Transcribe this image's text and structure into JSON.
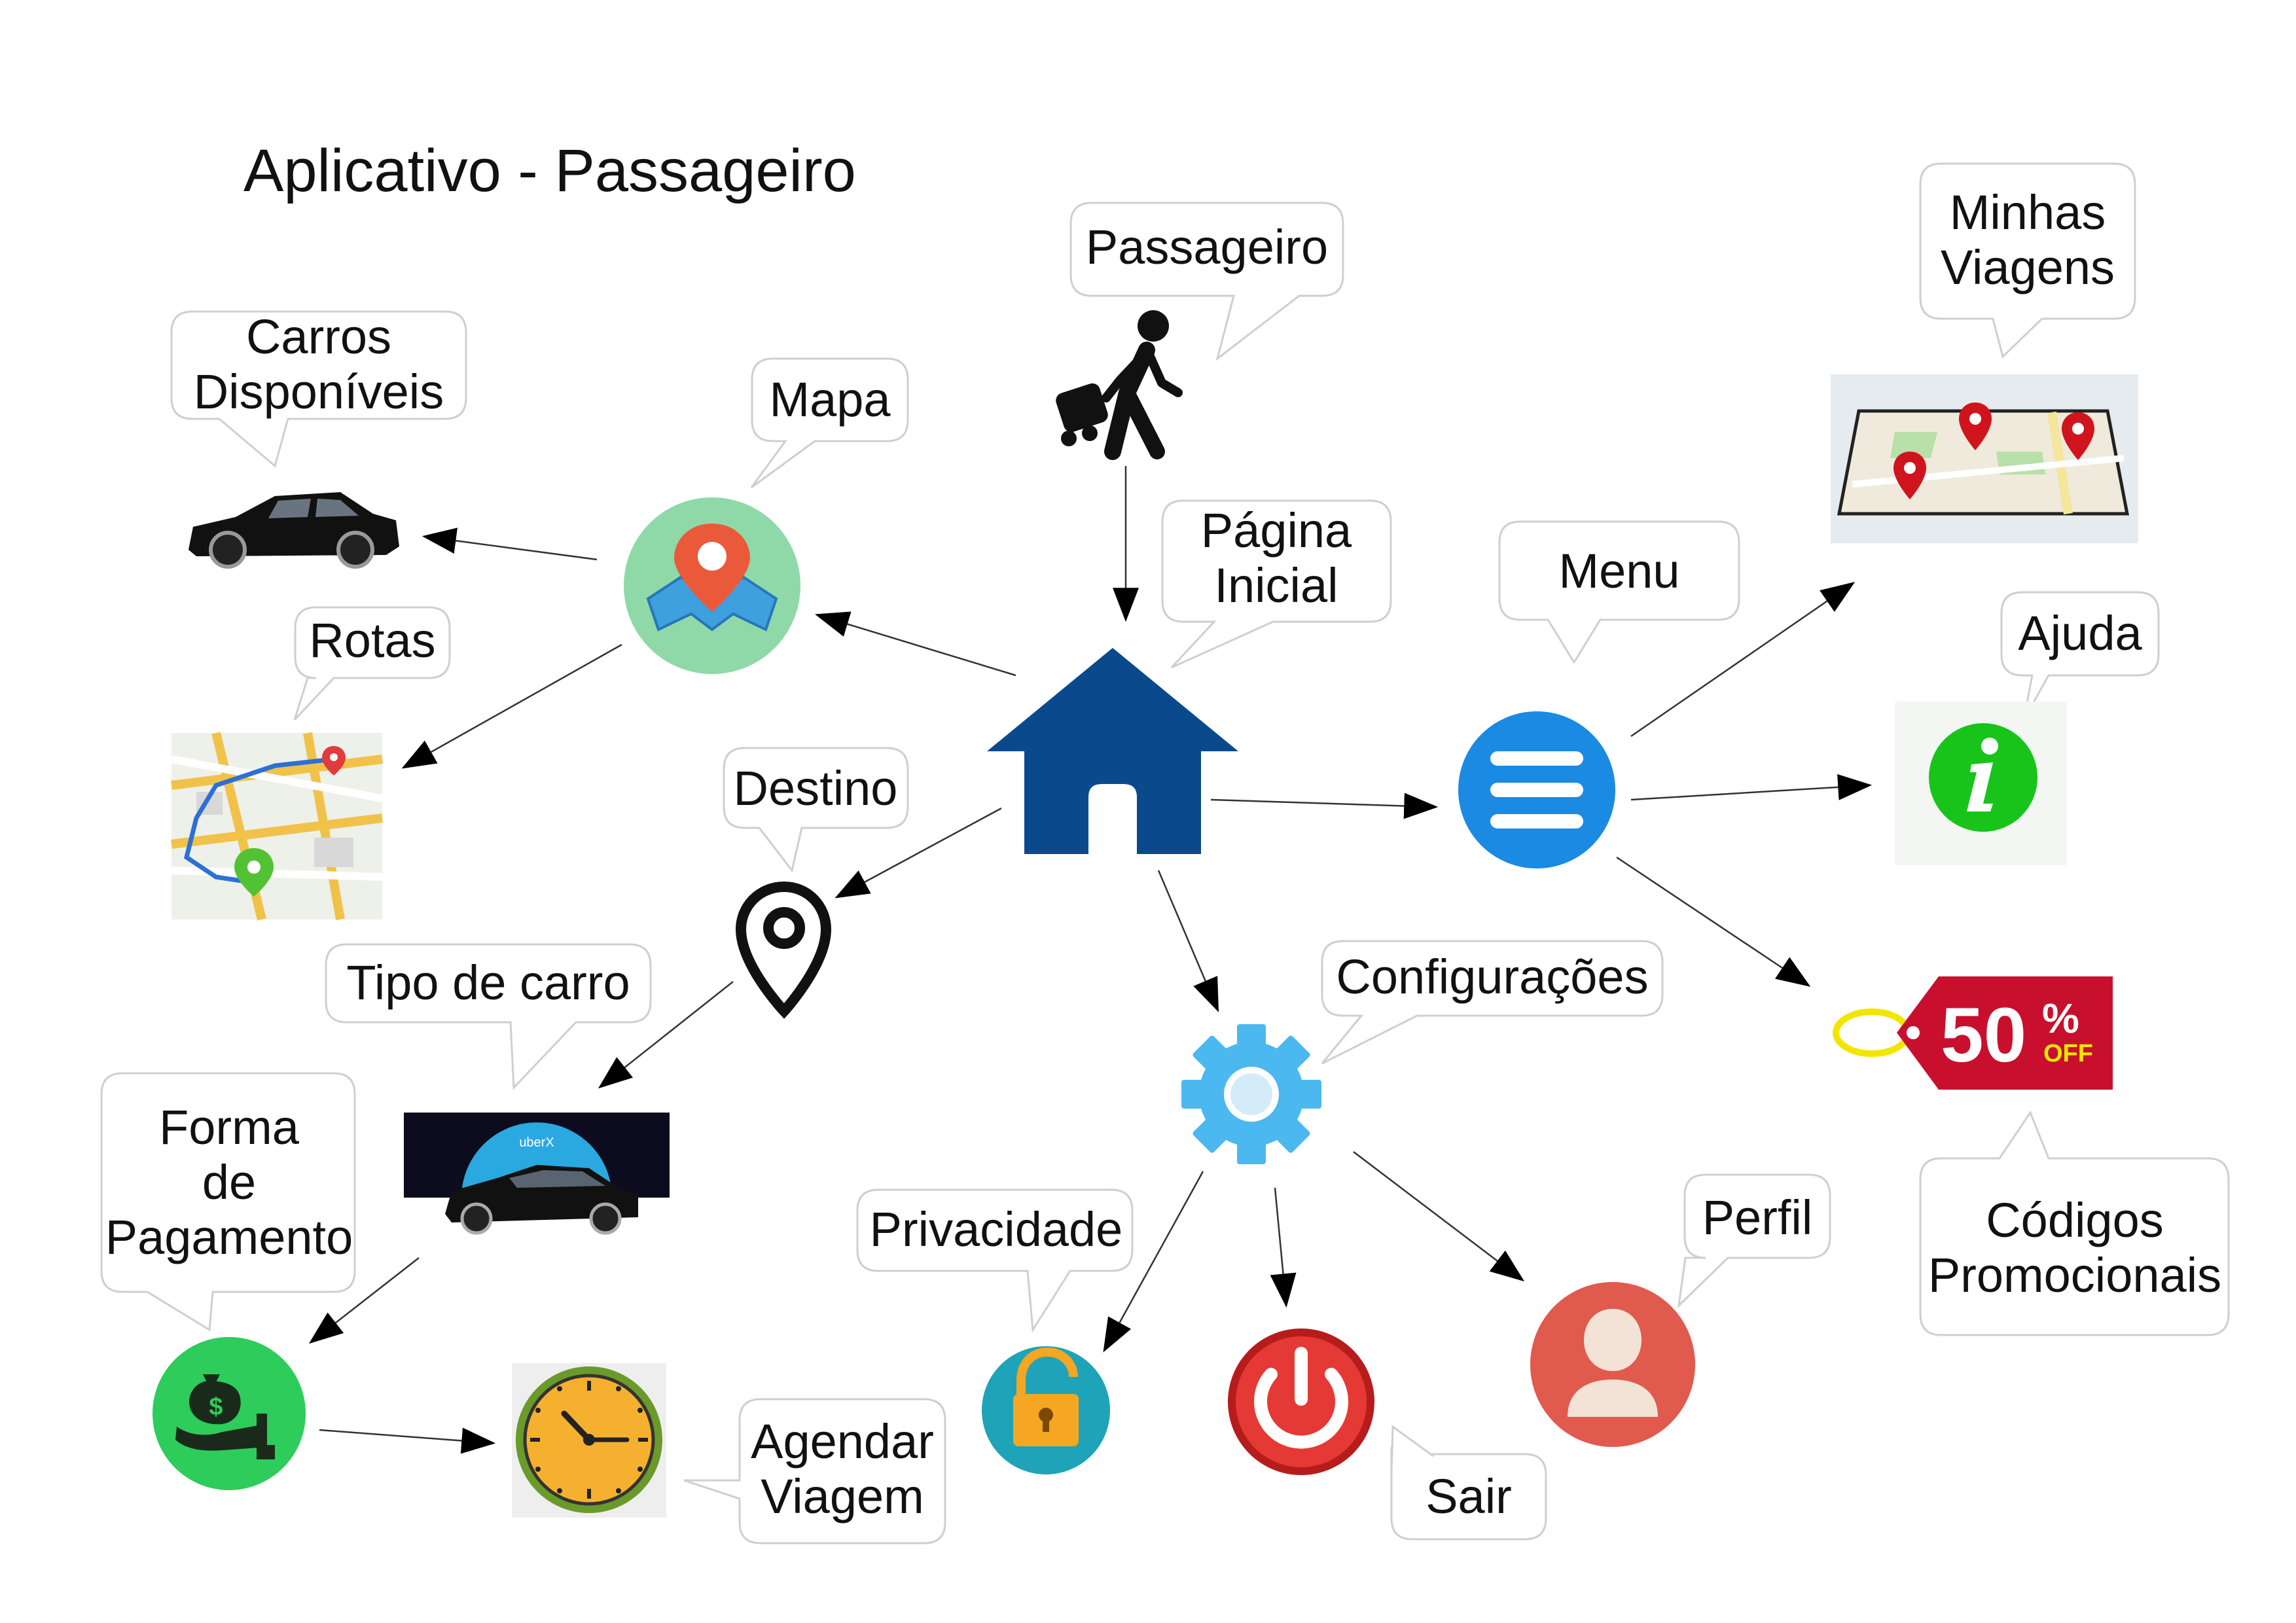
{
  "title": "Aplicativo - Passageiro",
  "labels": {
    "passageiro": "Passageiro",
    "pagina_inicial": [
      "Página",
      "Inicial"
    ],
    "minhas_viagens": [
      "Minhas",
      "Viagens"
    ],
    "carros_disponiveis": [
      "Carros",
      "Disponíveis"
    ],
    "mapa": "Mapa",
    "rotas": "Rotas",
    "menu": "Menu",
    "ajuda": "Ajuda",
    "destino": "Destino",
    "tipo_de_carro": "Tipo de carro",
    "configuracoes": "Configurações",
    "forma_de_pagamento": [
      "Forma",
      "de",
      "Pagamento"
    ],
    "privacidade": "Privacidade",
    "perfil": "Perfil",
    "codigos_promocionais": [
      "Códigos",
      "Promocionais"
    ],
    "agendar_viagem": [
      "Agendar",
      "Viagem"
    ],
    "sair": "Sair"
  },
  "promo_tag": {
    "big": "50",
    "pct": "%",
    "off": "OFF"
  },
  "car_brand_text": "uberX",
  "colors": {
    "home": "#0a4a8c",
    "map_circle": "#8fd9a8",
    "menu_circle": "#1a8ae3",
    "info_circle": "#18c41a",
    "gear": "#4bb8f0",
    "lock_circle": "#1fa3b8",
    "lock": "#f5a623",
    "power": "#e53935",
    "profile": "#e05a4e",
    "money_circle": "#2ecc5a",
    "clock_ring": "#6a9a2a",
    "clock_face": "#f6b030",
    "tag": "#c8102e",
    "tag_ring": "#f2e600"
  }
}
